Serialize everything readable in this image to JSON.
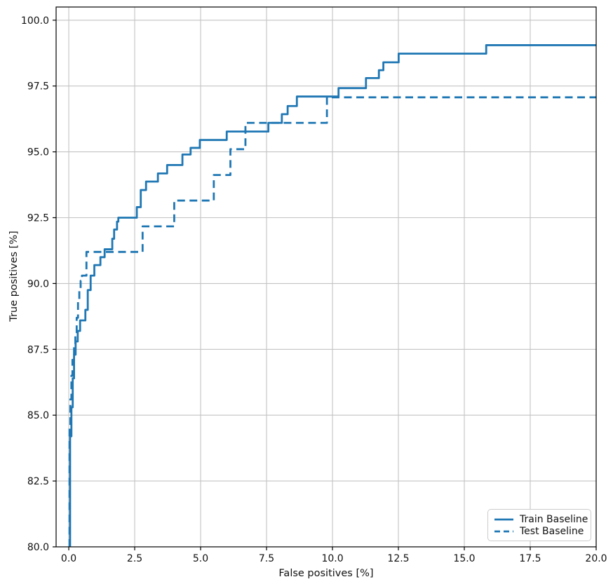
{
  "colors": {
    "line": "#1f77b4",
    "grid": "#c3c3c3",
    "spine": "#000000",
    "tick_label": "#111111",
    "legend_border": "#cccccc",
    "legend_bg": "#ffffff"
  },
  "chart_data": {
    "type": "line",
    "subtype": "step",
    "title": "",
    "xlabel": "False positives [%]",
    "ylabel": "True positives [%]",
    "xlim": [
      -0.48,
      20.0
    ],
    "ylim": [
      80.0,
      100.5
    ],
    "xticks": [
      0.0,
      2.5,
      5.0,
      7.5,
      10.0,
      12.5,
      15.0,
      17.5,
      20.0
    ],
    "yticks": [
      80.0,
      82.5,
      85.0,
      87.5,
      90.0,
      92.5,
      95.0,
      97.5,
      100.0
    ],
    "xtick_labels": [
      "0.0",
      "2.5",
      "5.0",
      "7.5",
      "10.0",
      "12.5",
      "15.0",
      "17.5",
      "20.0"
    ],
    "ytick_labels": [
      "80.0",
      "82.5",
      "85.0",
      "87.5",
      "90.0",
      "92.5",
      "95.0",
      "97.5",
      "100.0"
    ],
    "grid": true,
    "legend_position": "lower right",
    "series": [
      {
        "name": "Train Baseline",
        "style": "solid",
        "color": "#1f77b4",
        "points": [
          [
            0.05,
            80.0
          ],
          [
            0.05,
            84.2
          ],
          [
            0.1,
            84.2
          ],
          [
            0.1,
            85.3
          ],
          [
            0.15,
            85.3
          ],
          [
            0.15,
            86.4
          ],
          [
            0.2,
            86.4
          ],
          [
            0.2,
            87.3
          ],
          [
            0.26,
            87.3
          ],
          [
            0.26,
            87.8
          ],
          [
            0.34,
            87.8
          ],
          [
            0.34,
            88.2
          ],
          [
            0.43,
            88.2
          ],
          [
            0.43,
            88.6
          ],
          [
            0.63,
            88.6
          ],
          [
            0.63,
            89.0
          ],
          [
            0.72,
            89.0
          ],
          [
            0.72,
            89.75
          ],
          [
            0.83,
            89.75
          ],
          [
            0.83,
            90.3
          ],
          [
            0.97,
            90.3
          ],
          [
            0.97,
            90.7
          ],
          [
            1.2,
            90.7
          ],
          [
            1.2,
            91.0
          ],
          [
            1.36,
            91.0
          ],
          [
            1.36,
            91.3
          ],
          [
            1.65,
            91.3
          ],
          [
            1.65,
            91.7
          ],
          [
            1.72,
            91.7
          ],
          [
            1.72,
            92.05
          ],
          [
            1.83,
            92.05
          ],
          [
            1.83,
            92.35
          ],
          [
            1.88,
            92.35
          ],
          [
            1.88,
            92.5
          ],
          [
            2.58,
            92.5
          ],
          [
            2.58,
            92.9
          ],
          [
            2.73,
            92.9
          ],
          [
            2.73,
            93.55
          ],
          [
            2.93,
            93.55
          ],
          [
            2.93,
            93.87
          ],
          [
            3.38,
            93.87
          ],
          [
            3.38,
            94.18
          ],
          [
            3.73,
            94.18
          ],
          [
            3.73,
            94.5
          ],
          [
            4.31,
            94.5
          ],
          [
            4.31,
            94.9
          ],
          [
            4.62,
            94.9
          ],
          [
            4.62,
            95.15
          ],
          [
            4.97,
            95.15
          ],
          [
            4.97,
            95.45
          ],
          [
            5.99,
            95.45
          ],
          [
            5.99,
            95.77
          ],
          [
            7.57,
            95.77
          ],
          [
            7.57,
            96.1
          ],
          [
            8.08,
            96.1
          ],
          [
            8.08,
            96.43
          ],
          [
            8.3,
            96.43
          ],
          [
            8.3,
            96.74
          ],
          [
            8.65,
            96.74
          ],
          [
            8.65,
            97.1
          ],
          [
            10.23,
            97.1
          ],
          [
            10.23,
            97.42
          ],
          [
            11.27,
            97.42
          ],
          [
            11.27,
            97.8
          ],
          [
            11.76,
            97.8
          ],
          [
            11.76,
            98.1
          ],
          [
            11.93,
            98.1
          ],
          [
            11.93,
            98.4
          ],
          [
            12.51,
            98.4
          ],
          [
            12.51,
            98.73
          ],
          [
            15.83,
            98.73
          ],
          [
            15.83,
            99.05
          ],
          [
            20.0,
            99.05
          ]
        ]
      },
      {
        "name": "Test Baseline",
        "style": "dashed",
        "color": "#1f77b4",
        "points": [
          [
            0.03,
            80.0
          ],
          [
            0.03,
            84.5
          ],
          [
            0.06,
            84.5
          ],
          [
            0.06,
            85.6
          ],
          [
            0.1,
            85.6
          ],
          [
            0.1,
            86.5
          ],
          [
            0.14,
            86.5
          ],
          [
            0.14,
            87.1
          ],
          [
            0.2,
            87.1
          ],
          [
            0.2,
            87.6
          ],
          [
            0.25,
            87.6
          ],
          [
            0.25,
            88.1
          ],
          [
            0.3,
            88.1
          ],
          [
            0.3,
            88.7
          ],
          [
            0.35,
            88.7
          ],
          [
            0.35,
            89.3
          ],
          [
            0.4,
            89.3
          ],
          [
            0.4,
            89.8
          ],
          [
            0.45,
            89.8
          ],
          [
            0.45,
            90.1
          ],
          [
            0.5,
            90.1
          ],
          [
            0.5,
            90.3
          ],
          [
            0.67,
            90.3
          ],
          [
            0.67,
            91.2
          ],
          [
            2.8,
            91.2
          ],
          [
            2.8,
            92.17
          ],
          [
            4.0,
            92.17
          ],
          [
            4.0,
            93.15
          ],
          [
            5.5,
            93.15
          ],
          [
            5.5,
            94.12
          ],
          [
            6.13,
            94.12
          ],
          [
            6.13,
            95.1
          ],
          [
            6.7,
            95.1
          ],
          [
            6.7,
            96.1
          ],
          [
            9.79,
            96.1
          ],
          [
            9.79,
            97.07
          ],
          [
            20.0,
            97.07
          ]
        ]
      }
    ]
  },
  "legend": {
    "items": [
      {
        "label": "Train Baseline",
        "line": "solid"
      },
      {
        "label": "Test Baseline",
        "line": "dashed"
      }
    ]
  }
}
